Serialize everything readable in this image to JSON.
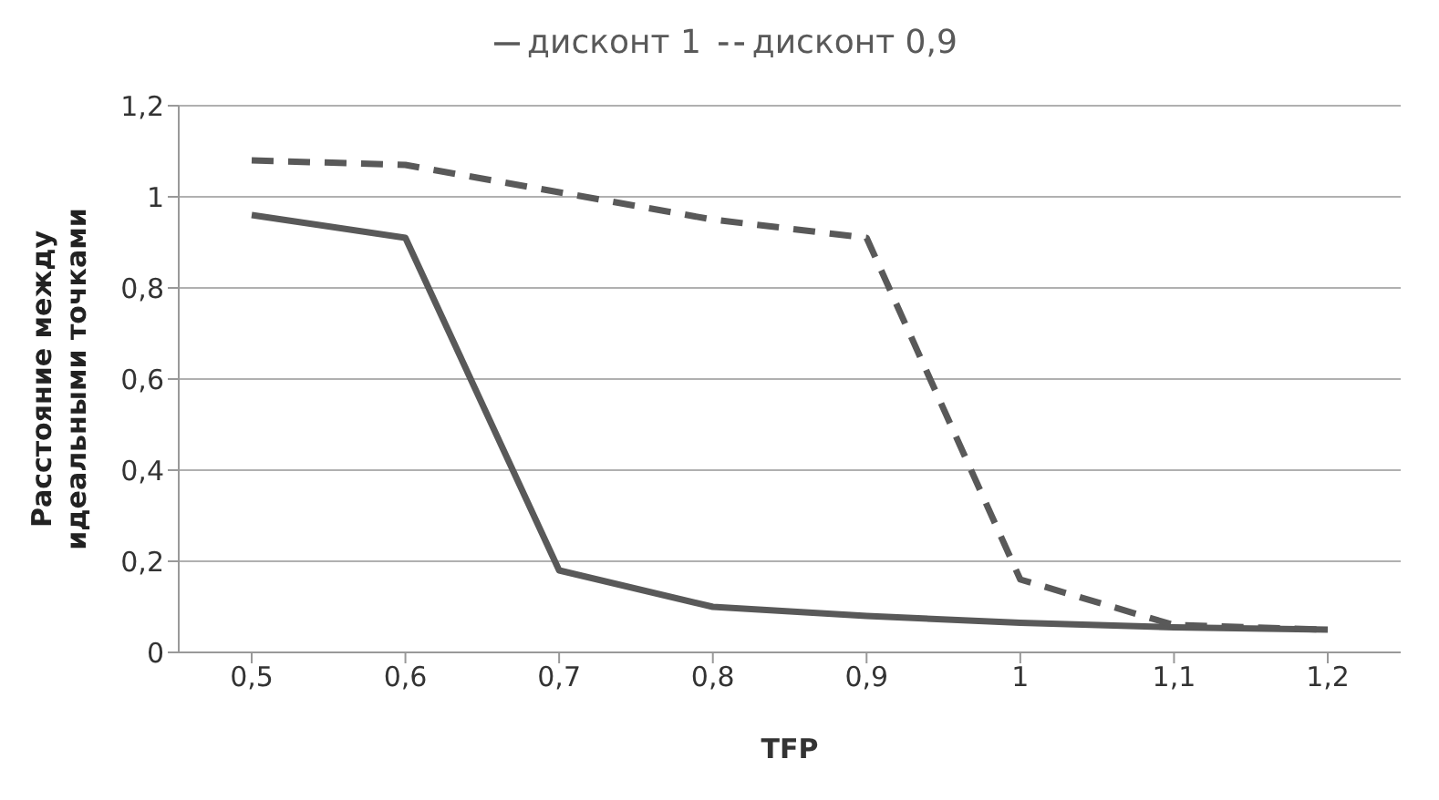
{
  "chart_data": {
    "type": "line",
    "xlabel": "TFP",
    "ylabel": "Расстояние между идеальными точками",
    "categories": [
      "0,5",
      "0,6",
      "0,7",
      "0,8",
      "0,9",
      "1",
      "1,1",
      "1,2"
    ],
    "series": [
      {
        "name": "дисконт 1",
        "color": "#595959",
        "line_style": "solid",
        "values": [
          0.96,
          0.91,
          0.18,
          0.1,
          0.08,
          0.065,
          0.055,
          0.05
        ]
      },
      {
        "name": "дисконт 0,9",
        "color": "#595959",
        "line_style": "dashed",
        "values": [
          1.08,
          1.07,
          1.01,
          0.95,
          0.91,
          0.16,
          0.06,
          0.05
        ]
      }
    ],
    "ylim": [
      0,
      1.2
    ],
    "yticks": [
      {
        "value": 0,
        "label": "0"
      },
      {
        "value": 0.2,
        "label": "0,2"
      },
      {
        "value": 0.4,
        "label": "0,4"
      },
      {
        "value": 0.6,
        "label": "0,6"
      },
      {
        "value": 0.8,
        "label": "0,8"
      },
      {
        "value": 1,
        "label": "1"
      },
      {
        "value": 1.2,
        "label": "1,2"
      }
    ],
    "grid": "y",
    "legend": "top",
    "marker": "none"
  }
}
